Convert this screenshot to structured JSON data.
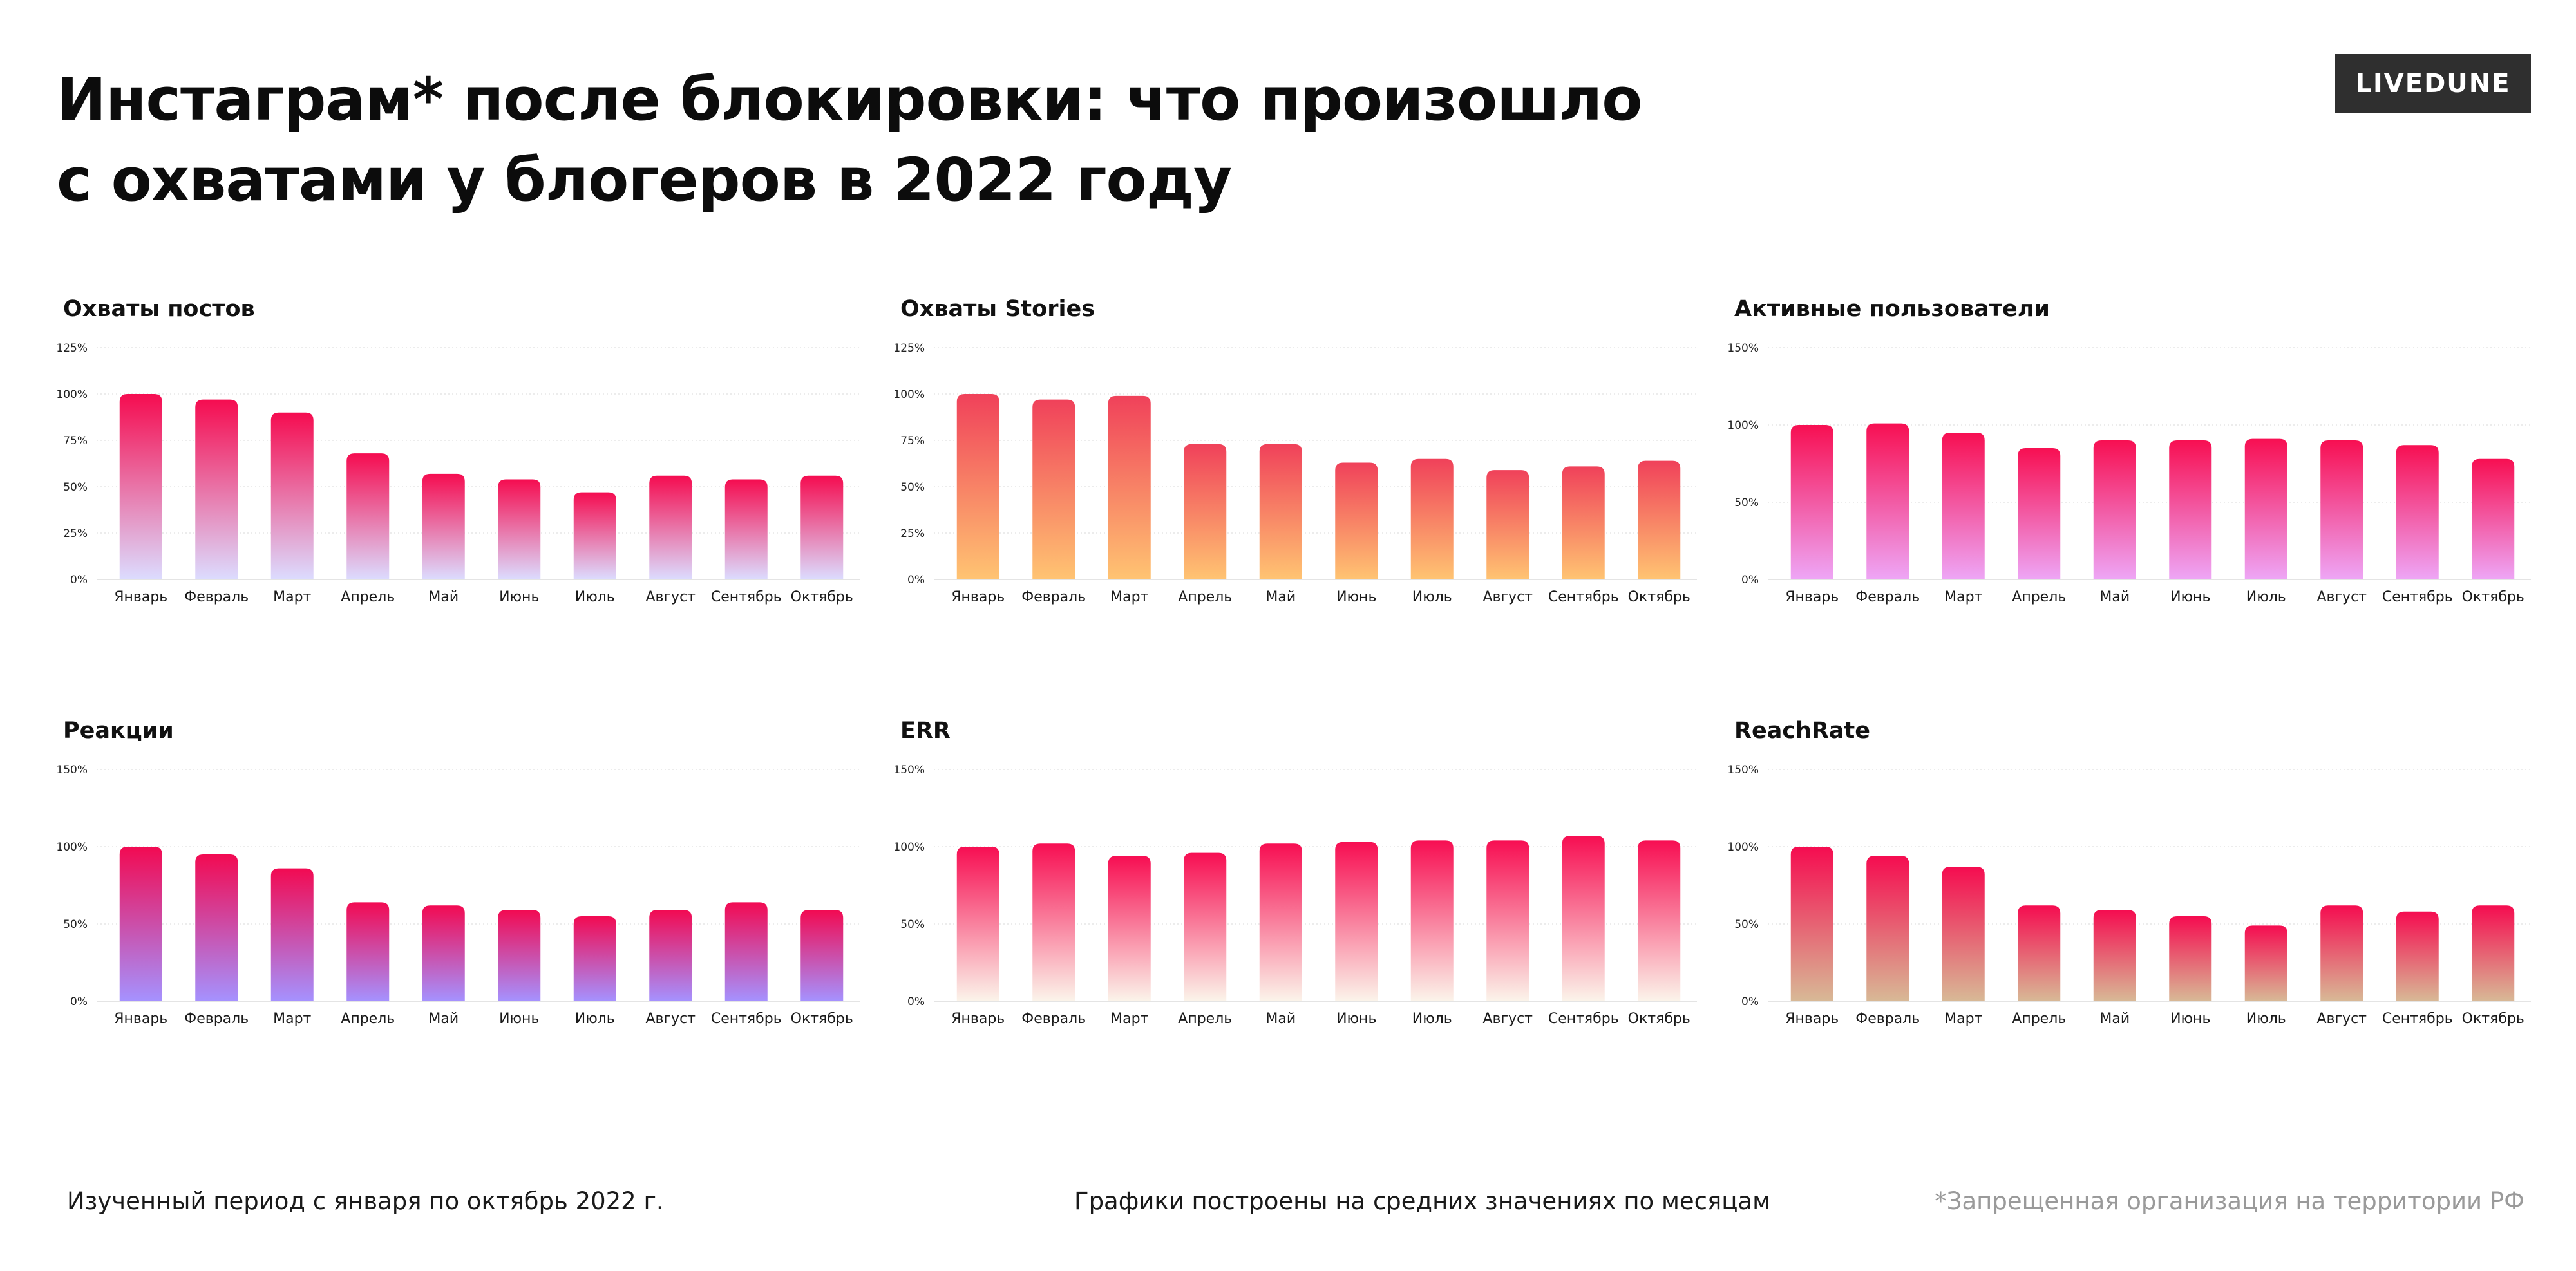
{
  "header": {
    "title_line1": "Инстаграм* после блокировки: что произошло",
    "title_line2": "с охватами у блогеров в 2022 году",
    "logo": "LIVEDUNE"
  },
  "footer": {
    "left": "Изученный период с января по октябрь 2022 г.",
    "center": "Графики построены на средних значениях по месяцам",
    "right": "*Запрещенная организация на территории РФ"
  },
  "colors": {
    "background": "#ffffff",
    "logo_bg": "#2f2f2f",
    "footer_note": "#9a9a9a"
  },
  "chart_data": [
    {
      "type": "bar",
      "title": "Охваты постов",
      "categories": [
        "Январь",
        "Февраль",
        "Март",
        "Апрель",
        "Май",
        "Июнь",
        "Июль",
        "Август",
        "Сентябрь",
        "Октябрь"
      ],
      "values": [
        100,
        97,
        90,
        68,
        57,
        54,
        47,
        56,
        54,
        56
      ],
      "ylim": [
        0,
        125
      ],
      "yticks": [
        0,
        25,
        50,
        75,
        100,
        125
      ],
      "ytick_labels": [
        "0%",
        "25%",
        "50%",
        "75%",
        "100%",
        "125%"
      ],
      "gradient": [
        "#f50c50",
        "#dcdcff"
      ],
      "grid": true
    },
    {
      "type": "bar",
      "title": "Охваты Stories",
      "categories": [
        "Январь",
        "Февраль",
        "Март",
        "Апрель",
        "Май",
        "Июнь",
        "Июль",
        "Август",
        "Сентябрь",
        "Октябрь"
      ],
      "values": [
        100,
        97,
        99,
        73,
        73,
        63,
        65,
        59,
        61,
        64
      ],
      "ylim": [
        0,
        125
      ],
      "yticks": [
        0,
        25,
        50,
        75,
        100,
        125
      ],
      "ytick_labels": [
        "0%",
        "25%",
        "50%",
        "75%",
        "100%",
        "125%"
      ],
      "gradient": [
        "#f0415a",
        "#ffc472"
      ],
      "grid": true
    },
    {
      "type": "bar",
      "title": "Активные пользователи",
      "categories": [
        "Январь",
        "Февраль",
        "Март",
        "Апрель",
        "Май",
        "Июнь",
        "Июль",
        "Август",
        "Сентябрь",
        "Октябрь"
      ],
      "values": [
        100,
        101,
        95,
        85,
        90,
        90,
        91,
        90,
        87,
        78
      ],
      "ylim": [
        0,
        150
      ],
      "yticks": [
        0,
        50,
        100,
        150
      ],
      "ytick_labels": [
        "0%",
        "50%",
        "100%",
        "150%"
      ],
      "gradient": [
        "#f70f52",
        "#eea6f6"
      ],
      "grid": true
    },
    {
      "type": "bar",
      "title": "Реакции",
      "categories": [
        "Январь",
        "Февраль",
        "Март",
        "Апрель",
        "Май",
        "Июнь",
        "Июль",
        "Август",
        "Сентябрь",
        "Октябрь"
      ],
      "values": [
        100,
        95,
        86,
        64,
        62,
        59,
        55,
        59,
        64,
        59
      ],
      "ylim": [
        0,
        150
      ],
      "yticks": [
        0,
        50,
        100,
        150
      ],
      "ytick_labels": [
        "0%",
        "50%",
        "100%",
        "150%"
      ],
      "gradient": [
        "#f20a52",
        "#a592ff"
      ],
      "grid": true
    },
    {
      "type": "bar",
      "title": "ERR",
      "categories": [
        "Январь",
        "Февраль",
        "Март",
        "Апрель",
        "Май",
        "Июнь",
        "Июль",
        "Август",
        "Сентябрь",
        "Октябрь"
      ],
      "values": [
        100,
        102,
        94,
        96,
        102,
        103,
        104,
        104,
        107,
        104
      ],
      "ylim": [
        0,
        150
      ],
      "yticks": [
        0,
        50,
        100,
        150
      ],
      "ytick_labels": [
        "0%",
        "50%",
        "100%",
        "150%"
      ],
      "gradient": [
        "#f70e52",
        "#fbf4ea"
      ],
      "grid": true
    },
    {
      "type": "bar",
      "title": "ReachRate",
      "categories": [
        "Январь",
        "Февраль",
        "Март",
        "Апрель",
        "Май",
        "Июнь",
        "Июль",
        "Август",
        "Сентябрь",
        "Октябрь"
      ],
      "values": [
        100,
        94,
        87,
        62,
        59,
        55,
        49,
        62,
        58,
        62
      ],
      "ylim": [
        0,
        150
      ],
      "yticks": [
        0,
        50,
        100,
        150
      ],
      "ytick_labels": [
        "0%",
        "50%",
        "100%",
        "150%"
      ],
      "gradient": [
        "#f50c50",
        "#d8b996"
      ],
      "grid": true
    }
  ]
}
